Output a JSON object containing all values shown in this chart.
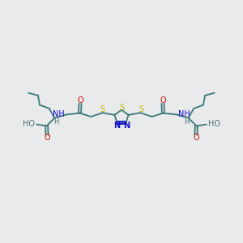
{
  "background_color": "#e8eaec",
  "bond_color": "#3d7878",
  "S_color": "#c8b400",
  "N_color": "#1010cc",
  "O_color": "#cc1000",
  "H_color": "#507070",
  "fig_width": 3.0,
  "fig_height": 3.0,
  "dpi": 100,
  "xlim": [
    0,
    14
  ],
  "ylim": [
    0,
    10
  ]
}
